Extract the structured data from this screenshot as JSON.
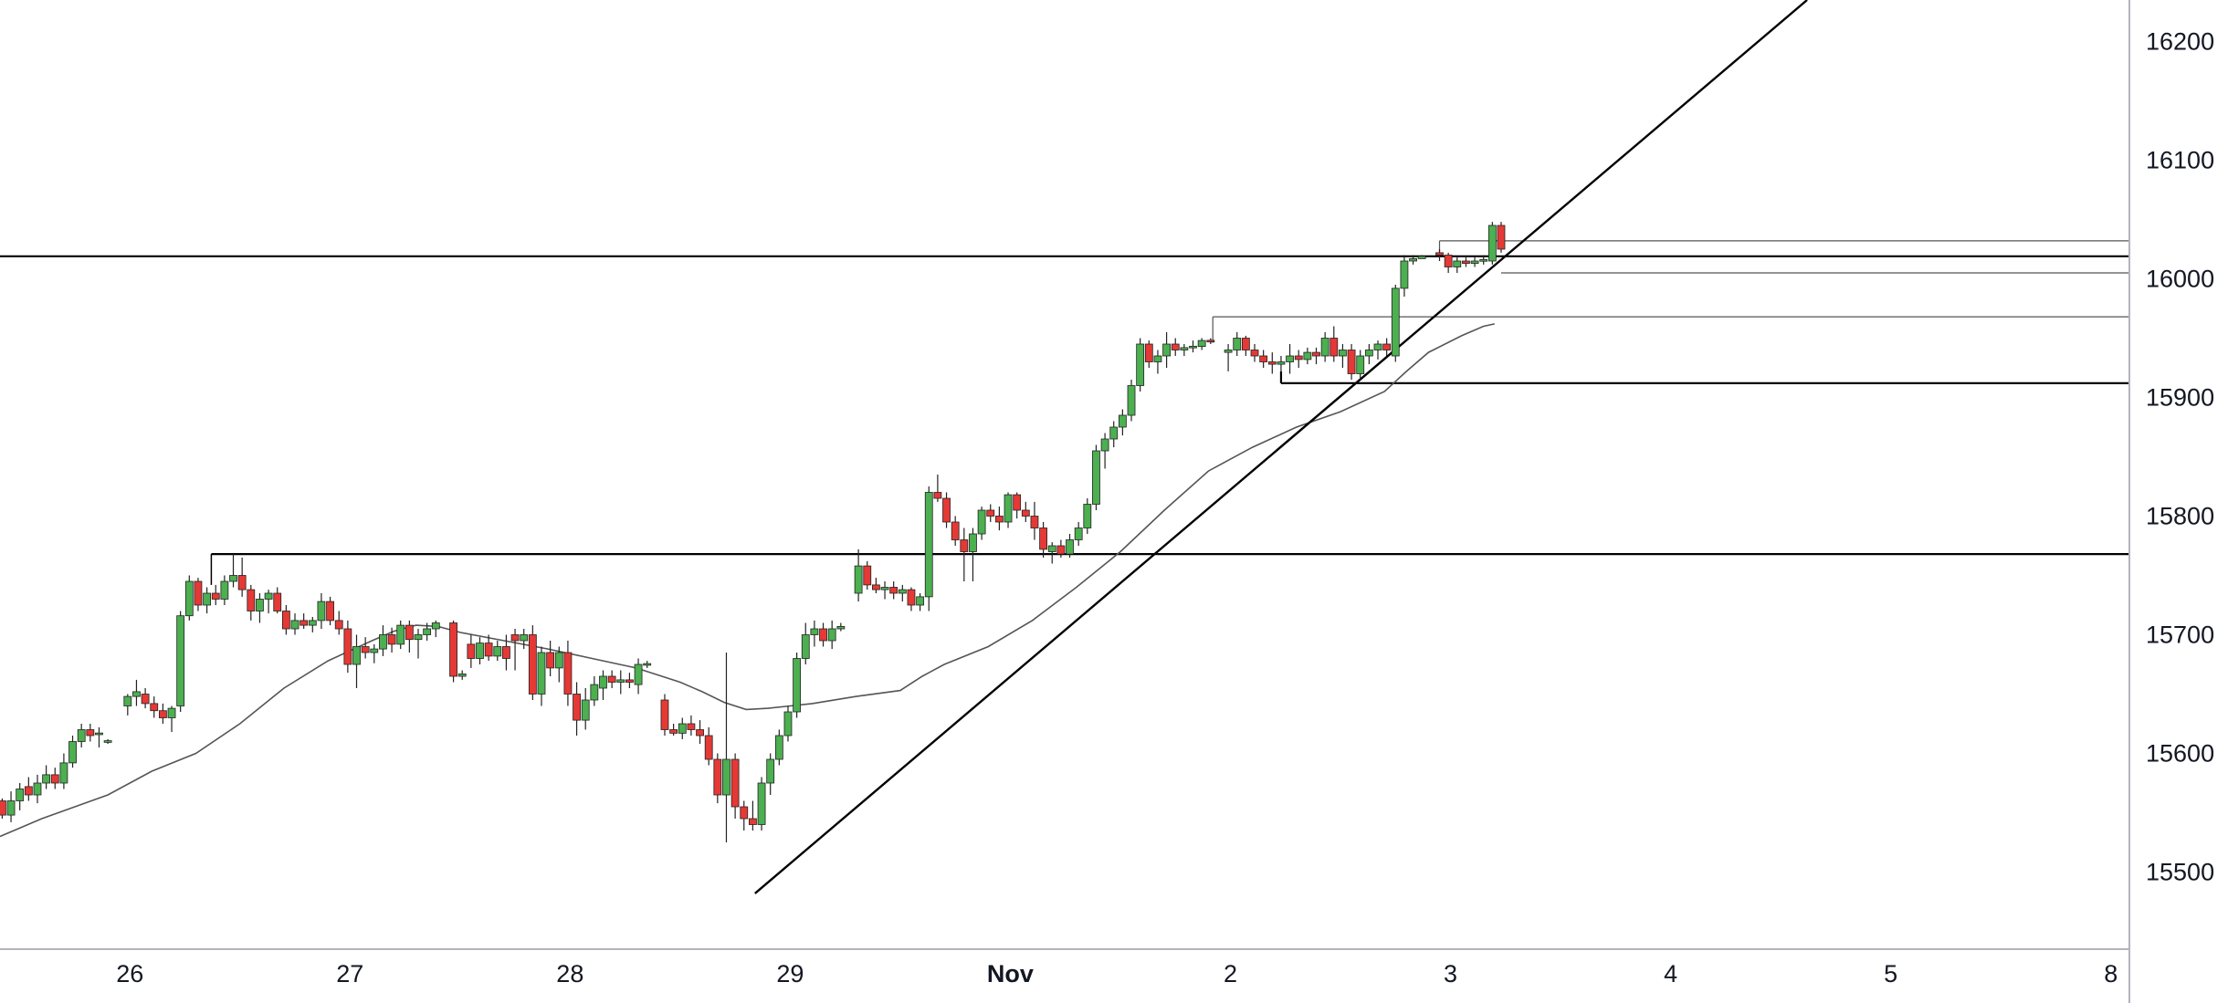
{
  "chart_data": {
    "type": "candlestick",
    "title": "",
    "xlabel": "",
    "ylabel": "",
    "ylim": [
      15435,
      16235
    ],
    "y_ticks": [
      15500,
      15600,
      15700,
      15800,
      15900,
      16000,
      16100,
      16200
    ],
    "x_ticks": [
      {
        "label": "26",
        "day": 0
      },
      {
        "label": "27",
        "day": 1
      },
      {
        "label": "28",
        "day": 2
      },
      {
        "label": "29",
        "day": 3
      },
      {
        "label": "Nov",
        "day": 4,
        "bold": true
      },
      {
        "label": "2",
        "day": 5
      },
      {
        "label": "3",
        "day": 6
      },
      {
        "label": "4",
        "day": 7
      },
      {
        "label": "5",
        "day": 8
      },
      {
        "label": "8",
        "day": 9
      }
    ],
    "x_range": [
      -0.59,
      9.08
    ],
    "grid": false,
    "colors": {
      "up": "#4caf50",
      "down": "#e53935",
      "outline": "#222222",
      "line": "#000000",
      "ma": "#555555",
      "axis_text": "#131722"
    },
    "candles": [
      [
        -0.58,
        15560,
        15562,
        15545,
        15548
      ],
      [
        -0.54,
        15548,
        15568,
        15542,
        15560
      ],
      [
        -0.5,
        15560,
        15575,
        15552,
        15570
      ],
      [
        -0.46,
        15572,
        15580,
        15560,
        15565
      ],
      [
        -0.42,
        15565,
        15582,
        15558,
        15575
      ],
      [
        -0.38,
        15575,
        15590,
        15570,
        15582
      ],
      [
        -0.34,
        15582,
        15588,
        15570,
        15575
      ],
      [
        -0.3,
        15575,
        15600,
        15570,
        15592
      ],
      [
        -0.26,
        15592,
        15615,
        15588,
        15610
      ],
      [
        -0.22,
        15610,
        15625,
        15605,
        15620
      ],
      [
        -0.18,
        15620,
        15625,
        15610,
        15615
      ],
      [
        -0.14,
        15616,
        15622,
        15605,
        15617
      ],
      [
        -0.1,
        15610,
        15612,
        15608,
        15610
      ],
      [
        -0.01,
        15640,
        15650,
        15632,
        15648
      ],
      [
        0.03,
        15648,
        15662,
        15640,
        15652
      ],
      [
        0.07,
        15650,
        15655,
        15638,
        15642
      ],
      [
        0.11,
        15642,
        15648,
        15630,
        15636
      ],
      [
        0.15,
        15636,
        15642,
        15625,
        15630
      ],
      [
        0.19,
        15630,
        15640,
        15618,
        15638
      ],
      [
        0.23,
        15640,
        15720,
        15635,
        15716
      ],
      [
        0.27,
        15716,
        15750,
        15712,
        15745
      ],
      [
        0.31,
        15745,
        15748,
        15720,
        15725
      ],
      [
        0.35,
        15725,
        15740,
        15718,
        15735
      ],
      [
        0.39,
        15735,
        15742,
        15725,
        15730
      ],
      [
        0.43,
        15730,
        15750,
        15725,
        15745
      ],
      [
        0.47,
        15745,
        15768,
        15740,
        15750
      ],
      [
        0.51,
        15750,
        15765,
        15732,
        15738
      ],
      [
        0.55,
        15738,
        15742,
        15712,
        15720
      ],
      [
        0.59,
        15720,
        15735,
        15710,
        15730
      ],
      [
        0.63,
        15730,
        15738,
        15718,
        15735
      ],
      [
        0.67,
        15735,
        15740,
        15718,
        15720
      ],
      [
        0.71,
        15720,
        15725,
        15700,
        15705
      ],
      [
        0.75,
        15705,
        15718,
        15700,
        15712
      ],
      [
        0.79,
        15712,
        15718,
        15705,
        15708
      ],
      [
        0.83,
        15708,
        15715,
        15702,
        15712
      ],
      [
        0.87,
        15712,
        15735,
        15705,
        15728
      ],
      [
        0.91,
        15728,
        15732,
        15708,
        15712
      ],
      [
        0.95,
        15712,
        15720,
        15700,
        15705
      ],
      [
        0.99,
        15705,
        15712,
        15668,
        15675
      ],
      [
        1.03,
        15675,
        15700,
        15655,
        15690
      ],
      [
        1.07,
        15690,
        15698,
        15680,
        15685
      ],
      [
        1.11,
        15685,
        15692,
        15676,
        15688
      ],
      [
        1.15,
        15688,
        15708,
        15682,
        15700
      ],
      [
        1.19,
        15700,
        15706,
        15685,
        15692
      ],
      [
        1.23,
        15692,
        15712,
        15688,
        15708
      ],
      [
        1.27,
        15708,
        15712,
        15685,
        15696
      ],
      [
        1.31,
        15696,
        15705,
        15680,
        15700
      ],
      [
        1.35,
        15700,
        15710,
        15695,
        15705
      ],
      [
        1.39,
        15705,
        15712,
        15698,
        15710
      ],
      [
        1.47,
        15710,
        15712,
        15660,
        15665
      ],
      [
        1.51,
        15665,
        15670,
        15662,
        15667
      ],
      [
        1.55,
        15692,
        15700,
        15672,
        15680
      ],
      [
        1.59,
        15680,
        15698,
        15675,
        15693
      ],
      [
        1.63,
        15693,
        15700,
        15678,
        15682
      ],
      [
        1.67,
        15682,
        15695,
        15678,
        15690
      ],
      [
        1.71,
        15690,
        15700,
        15670,
        15680
      ],
      [
        1.75,
        15700,
        15705,
        15670,
        15695
      ],
      [
        1.79,
        15695,
        15705,
        15688,
        15700
      ],
      [
        1.83,
        15700,
        15708,
        15645,
        15650
      ],
      [
        1.87,
        15650,
        15690,
        15640,
        15685
      ],
      [
        1.91,
        15685,
        15695,
        15665,
        15672
      ],
      [
        1.95,
        15672,
        15690,
        15660,
        15685
      ],
      [
        1.99,
        15685,
        15695,
        15640,
        15650
      ],
      [
        2.03,
        15650,
        15660,
        15615,
        15628
      ],
      [
        2.07,
        15628,
        15655,
        15620,
        15645
      ],
      [
        2.11,
        15645,
        15665,
        15640,
        15658
      ],
      [
        2.15,
        15655,
        15670,
        15645,
        15665
      ],
      [
        2.19,
        15665,
        15670,
        15655,
        15660
      ],
      [
        2.23,
        15660,
        15670,
        15650,
        15662
      ],
      [
        2.27,
        15662,
        15668,
        15655,
        15660
      ],
      [
        2.31,
        15658,
        15680,
        15650,
        15675
      ],
      [
        2.35,
        15675,
        15678,
        15672,
        15675
      ],
      [
        2.43,
        15645,
        15650,
        15615,
        15620
      ],
      [
        2.47,
        15620,
        15625,
        15615,
        15617
      ],
      [
        2.51,
        15617,
        15630,
        15612,
        15625
      ],
      [
        2.55,
        15625,
        15632,
        15615,
        15620
      ],
      [
        2.59,
        15620,
        15628,
        15608,
        15615
      ],
      [
        2.63,
        15615,
        15622,
        15590,
        15595
      ],
      [
        2.67,
        15595,
        15600,
        15558,
        15565
      ],
      [
        2.71,
        15565,
        15685,
        15525,
        15595
      ],
      [
        2.75,
        15595,
        15600,
        15545,
        15555
      ],
      [
        2.79,
        15555,
        15560,
        15535,
        15545
      ],
      [
        2.83,
        15545,
        15560,
        15535,
        15540
      ],
      [
        2.87,
        15540,
        15580,
        15535,
        15575
      ],
      [
        2.91,
        15575,
        15600,
        15565,
        15595
      ],
      [
        2.95,
        15595,
        15620,
        15590,
        15615
      ],
      [
        2.99,
        15615,
        15640,
        15610,
        15635
      ],
      [
        3.03,
        15635,
        15685,
        15630,
        15680
      ],
      [
        3.07,
        15680,
        15710,
        15675,
        15700
      ],
      [
        3.11,
        15700,
        15712,
        15690,
        15705
      ],
      [
        3.15,
        15705,
        15710,
        15690,
        15695
      ],
      [
        3.19,
        15695,
        15712,
        15688,
        15705
      ],
      [
        3.23,
        15705,
        15710,
        15703,
        15707
      ],
      [
        3.31,
        15735,
        15772,
        15728,
        15758
      ],
      [
        3.35,
        15758,
        15762,
        15738,
        15742
      ],
      [
        3.39,
        15742,
        15748,
        15735,
        15738
      ],
      [
        3.43,
        15738,
        15745,
        15730,
        15740
      ],
      [
        3.47,
        15740,
        15745,
        15730,
        15735
      ],
      [
        3.51,
        15735,
        15742,
        15728,
        15738
      ],
      [
        3.55,
        15738,
        15740,
        15720,
        15725
      ],
      [
        3.59,
        15725,
        15735,
        15720,
        15732
      ],
      [
        3.63,
        15732,
        15825,
        15720,
        15820
      ],
      [
        3.67,
        15820,
        15835,
        15812,
        15815
      ],
      [
        3.71,
        15815,
        15820,
        15790,
        15795
      ],
      [
        3.75,
        15795,
        15800,
        15775,
        15780
      ],
      [
        3.79,
        15780,
        15790,
        15745,
        15770
      ],
      [
        3.83,
        15770,
        15790,
        15745,
        15785
      ],
      [
        3.87,
        15785,
        15808,
        15780,
        15805
      ],
      [
        3.91,
        15805,
        15810,
        15795,
        15800
      ],
      [
        3.95,
        15800,
        15808,
        15788,
        15795
      ],
      [
        3.99,
        15795,
        15820,
        15790,
        15818
      ],
      [
        4.03,
        15818,
        15820,
        15798,
        15805
      ],
      [
        4.07,
        15805,
        15812,
        15795,
        15800
      ],
      [
        4.11,
        15800,
        15812,
        15780,
        15790
      ],
      [
        4.15,
        15790,
        15795,
        15765,
        15772
      ],
      [
        4.19,
        15770,
        15778,
        15760,
        15775
      ],
      [
        4.23,
        15775,
        15780,
        15765,
        15768
      ],
      [
        4.27,
        15768,
        15785,
        15765,
        15780
      ],
      [
        4.31,
        15780,
        15795,
        15775,
        15790
      ],
      [
        4.35,
        15790,
        15815,
        15785,
        15810
      ],
      [
        4.39,
        15810,
        15860,
        15805,
        15855
      ],
      [
        4.43,
        15855,
        15870,
        15840,
        15865
      ],
      [
        4.47,
        15865,
        15880,
        15858,
        15875
      ],
      [
        4.51,
        15875,
        15890,
        15868,
        15885
      ],
      [
        4.55,
        15885,
        15915,
        15880,
        15910
      ],
      [
        4.59,
        15910,
        15950,
        15905,
        15945
      ],
      [
        4.63,
        15945,
        15948,
        15925,
        15930
      ],
      [
        4.67,
        15930,
        15940,
        15920,
        15935
      ],
      [
        4.71,
        15935,
        15955,
        15925,
        15945
      ],
      [
        4.75,
        15945,
        15950,
        15935,
        15940
      ],
      [
        4.79,
        15940,
        15945,
        15935,
        15942
      ],
      [
        4.83,
        15942,
        15948,
        15938,
        15943
      ],
      [
        4.87,
        15943,
        15950,
        15940,
        15948
      ],
      [
        4.91,
        15948,
        15950,
        15945,
        15947
      ],
      [
        4.99,
        15938,
        15945,
        15922,
        15940
      ],
      [
        5.03,
        15940,
        15955,
        15935,
        15950
      ],
      [
        5.07,
        15950,
        15952,
        15935,
        15940
      ],
      [
        5.11,
        15940,
        15945,
        15930,
        15935
      ],
      [
        5.15,
        15935,
        15940,
        15925,
        15930
      ],
      [
        5.19,
        15930,
        15938,
        15920,
        15928
      ],
      [
        5.23,
        15928,
        15935,
        15922,
        15930
      ],
      [
        5.27,
        15930,
        15945,
        15920,
        15935
      ],
      [
        5.31,
        15935,
        15940,
        15925,
        15932
      ],
      [
        5.35,
        15932,
        15942,
        15928,
        15938
      ],
      [
        5.39,
        15938,
        15942,
        15928,
        15935
      ],
      [
        5.43,
        15935,
        15955,
        15930,
        15950
      ],
      [
        5.47,
        15950,
        15960,
        15930,
        15935
      ],
      [
        5.51,
        15935,
        15945,
        15925,
        15940
      ],
      [
        5.55,
        15940,
        15945,
        15915,
        15920
      ],
      [
        5.59,
        15920,
        15940,
        15915,
        15935
      ],
      [
        5.63,
        15935,
        15945,
        15928,
        15940
      ],
      [
        5.67,
        15940,
        15948,
        15932,
        15945
      ],
      [
        5.71,
        15945,
        15950,
        15935,
        15940
      ],
      [
        5.75,
        15935,
        15995,
        15930,
        15992
      ],
      [
        5.79,
        15992,
        16020,
        15985,
        16015
      ],
      [
        5.83,
        16015,
        16020,
        16012,
        16017
      ],
      [
        5.87,
        16017,
        16020,
        16018,
        16019
      ],
      [
        5.95,
        16022,
        16025,
        16015,
        16020
      ],
      [
        5.99,
        16020,
        16022,
        16005,
        16010
      ],
      [
        6.03,
        16010,
        16018,
        16005,
        16015
      ],
      [
        6.07,
        16015,
        16018,
        16010,
        16013
      ],
      [
        6.11,
        16013,
        16018,
        16010,
        16015
      ],
      [
        6.15,
        16015,
        16020,
        16012,
        16016
      ],
      [
        6.19,
        16015,
        16048,
        16012,
        16045
      ],
      [
        6.23,
        16045,
        16048,
        16022,
        16025
      ]
    ],
    "moving_average": [
      [
        -0.59,
        15530
      ],
      [
        -0.4,
        15545
      ],
      [
        -0.1,
        15565
      ],
      [
        0.1,
        15585
      ],
      [
        0.3,
        15600
      ],
      [
        0.5,
        15625
      ],
      [
        0.7,
        15655
      ],
      [
        0.9,
        15678
      ],
      [
        1.1,
        15695
      ],
      [
        1.2,
        15703
      ],
      [
        1.3,
        15708
      ],
      [
        1.4,
        15707
      ],
      [
        1.5,
        15702
      ],
      [
        1.7,
        15695
      ],
      [
        1.9,
        15688
      ],
      [
        2.1,
        15680
      ],
      [
        2.3,
        15672
      ],
      [
        2.5,
        15660
      ],
      [
        2.6,
        15652
      ],
      [
        2.7,
        15643
      ],
      [
        2.8,
        15637
      ],
      [
        2.9,
        15638
      ],
      [
        3.0,
        15640
      ],
      [
        3.1,
        15642
      ],
      [
        3.3,
        15648
      ],
      [
        3.5,
        15653
      ],
      [
        3.6,
        15665
      ],
      [
        3.7,
        15675
      ],
      [
        3.9,
        15690
      ],
      [
        4.1,
        15712
      ],
      [
        4.3,
        15740
      ],
      [
        4.5,
        15770
      ],
      [
        4.7,
        15805
      ],
      [
        4.9,
        15838
      ],
      [
        5.0,
        15848
      ],
      [
        5.1,
        15858
      ],
      [
        5.3,
        15875
      ],
      [
        5.5,
        15888
      ],
      [
        5.7,
        15905
      ],
      [
        5.8,
        15922
      ],
      [
        5.9,
        15938
      ],
      [
        6.05,
        15952
      ],
      [
        6.15,
        15960
      ],
      [
        6.2,
        15962
      ]
    ],
    "trendline": {
      "from": [
        2.84,
        15482
      ],
      "to": [
        7.62,
        16235
      ]
    },
    "levels": [
      {
        "from": -0.59,
        "to": 9.08,
        "y": 16019,
        "weight": "heavy"
      },
      {
        "from": 0.37,
        "to": 9.08,
        "y": 15768,
        "weight": "heavy"
      },
      {
        "from": 4.92,
        "to": 9.08,
        "y": 15968,
        "weight": "light",
        "tick_down_to": 15946
      },
      {
        "from": 5.23,
        "to": 9.08,
        "y": 15912,
        "weight": "heavy",
        "tick_up_to": 15922
      },
      {
        "from": 5.95,
        "to": 9.08,
        "y": 16032,
        "weight": "light",
        "tick_down_to": 16020
      },
      {
        "from": 6.23,
        "to": 9.08,
        "y": 16005,
        "weight": "light"
      }
    ],
    "level_start_ticks": [
      {
        "x": 0.37,
        "y_top": 15768,
        "y_bottom": 15742
      }
    ]
  }
}
